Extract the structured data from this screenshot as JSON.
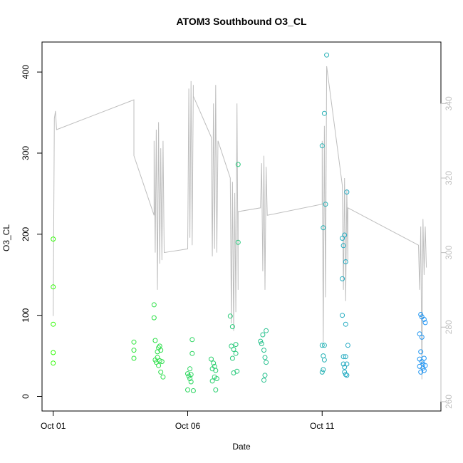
{
  "chart_data": {
    "type": "scatter",
    "title": "ATOM3 Southbound O3_CL",
    "xlabel": "Date",
    "ylabel": "O3_CL",
    "xlim": [
      "2016-09-30T14:00",
      "2016-10-15T10:00"
    ],
    "ylim": [
      -18,
      437
    ],
    "y2lim": [
      257.5,
      356.5
    ],
    "x_ticks": [
      {
        "label": "Oct 01",
        "value": "2016-10-01T00:00"
      },
      {
        "label": "Oct 06",
        "value": "2016-10-06T00:00"
      },
      {
        "label": "Oct 11",
        "value": "2016-10-11T00:00"
      }
    ],
    "y_ticks": [
      0,
      100,
      200,
      300,
      400
    ],
    "y2_ticks": [
      260,
      280,
      300,
      320,
      340
    ],
    "grid": false,
    "legend": "none",
    "colors": {
      "line": "#bebebe",
      "axis": "#000000",
      "right_axis": "#bebebe",
      "point_start": "#33ff00",
      "point_end": "#1e90ff"
    },
    "points": [
      {
        "x": "2016-10-01T00:00",
        "y": 194
      },
      {
        "x": "2016-10-01T00:00",
        "y": 135
      },
      {
        "x": "2016-10-01T00:00",
        "y": 89
      },
      {
        "x": "2016-10-01T00:00",
        "y": 54
      },
      {
        "x": "2016-10-01T00:00",
        "y": 41
      },
      {
        "x": "2016-10-04T00:00",
        "y": 67
      },
      {
        "x": "2016-10-04T00:00",
        "y": 57
      },
      {
        "x": "2016-10-04T00:00",
        "y": 47
      },
      {
        "x": "2016-10-04T18:00",
        "y": 113
      },
      {
        "x": "2016-10-04T18:00",
        "y": 97
      },
      {
        "x": "2016-10-04T19:00",
        "y": 69
      },
      {
        "x": "2016-10-04T19:00",
        "y": 45
      },
      {
        "x": "2016-10-04T20:00",
        "y": 42
      },
      {
        "x": "2016-10-04T21:00",
        "y": 55
      },
      {
        "x": "2016-10-04T21:00",
        "y": 48
      },
      {
        "x": "2016-10-04T22:00",
        "y": 60
      },
      {
        "x": "2016-10-04T22:00",
        "y": 38
      },
      {
        "x": "2016-10-04T23:00",
        "y": 62
      },
      {
        "x": "2016-10-04T23:00",
        "y": 44
      },
      {
        "x": "2016-10-05T00:00",
        "y": 57
      },
      {
        "x": "2016-10-05T00:00",
        "y": 30
      },
      {
        "x": "2016-10-05T01:00",
        "y": 43
      },
      {
        "x": "2016-10-05T02:00",
        "y": 24
      },
      {
        "x": "2016-10-06T00:00",
        "y": 28
      },
      {
        "x": "2016-10-06T00:00",
        "y": 8
      },
      {
        "x": "2016-10-06T01:00",
        "y": 25
      },
      {
        "x": "2016-10-06T02:00",
        "y": 34
      },
      {
        "x": "2016-10-06T02:00",
        "y": 22
      },
      {
        "x": "2016-10-06T03:00",
        "y": 18
      },
      {
        "x": "2016-10-06T03:00",
        "y": 27
      },
      {
        "x": "2016-10-06T04:00",
        "y": 70
      },
      {
        "x": "2016-10-06T04:00",
        "y": 53
      },
      {
        "x": "2016-10-06T05:00",
        "y": 7
      },
      {
        "x": "2016-10-06T21:00",
        "y": 46
      },
      {
        "x": "2016-10-06T22:00",
        "y": 34
      },
      {
        "x": "2016-10-06T22:00",
        "y": 19
      },
      {
        "x": "2016-10-06T23:00",
        "y": 41
      },
      {
        "x": "2016-10-07T00:00",
        "y": 37
      },
      {
        "x": "2016-10-07T00:00",
        "y": 24
      },
      {
        "x": "2016-10-07T01:00",
        "y": 32
      },
      {
        "x": "2016-10-07T01:00",
        "y": 8
      },
      {
        "x": "2016-10-07T02:00",
        "y": 22
      },
      {
        "x": "2016-10-07T14:00",
        "y": 99
      },
      {
        "x": "2016-10-07T16:00",
        "y": 86
      },
      {
        "x": "2016-10-07T15:00",
        "y": 62
      },
      {
        "x": "2016-10-07T17:00",
        "y": 58
      },
      {
        "x": "2016-10-07T19:00",
        "y": 64
      },
      {
        "x": "2016-10-07T19:00",
        "y": 53
      },
      {
        "x": "2016-10-07T16:00",
        "y": 47
      },
      {
        "x": "2016-10-07T17:00",
        "y": 29
      },
      {
        "x": "2016-10-07T20:00",
        "y": 31
      },
      {
        "x": "2016-10-07T21:00",
        "y": 190
      },
      {
        "x": "2016-10-07T21:00",
        "y": 286
      },
      {
        "x": "2016-10-08T17:00",
        "y": 68
      },
      {
        "x": "2016-10-08T18:00",
        "y": 65
      },
      {
        "x": "2016-10-08T19:00",
        "y": 76
      },
      {
        "x": "2016-10-08T20:00",
        "y": 57
      },
      {
        "x": "2016-10-08T21:00",
        "y": 48
      },
      {
        "x": "2016-10-08T22:00",
        "y": 81
      },
      {
        "x": "2016-10-08T22:00",
        "y": 42
      },
      {
        "x": "2016-10-08T21:00",
        "y": 26
      },
      {
        "x": "2016-10-08T20:00",
        "y": 20
      },
      {
        "x": "2016-10-11T00:00",
        "y": 309
      },
      {
        "x": "2016-10-11T01:00",
        "y": 208
      },
      {
        "x": "2016-10-11T02:00",
        "y": 349
      },
      {
        "x": "2016-10-11T03:00",
        "y": 237
      },
      {
        "x": "2016-10-11T04:00",
        "y": 421
      },
      {
        "x": "2016-10-11T00:00",
        "y": 63
      },
      {
        "x": "2016-10-11T02:00",
        "y": 63
      },
      {
        "x": "2016-10-11T01:00",
        "y": 50
      },
      {
        "x": "2016-10-11T02:00",
        "y": 45
      },
      {
        "x": "2016-10-11T01:00",
        "y": 33
      },
      {
        "x": "2016-10-11T00:00",
        "y": 30
      },
      {
        "x": "2016-10-11T18:00",
        "y": 195
      },
      {
        "x": "2016-10-11T20:00",
        "y": 199
      },
      {
        "x": "2016-10-11T19:00",
        "y": 186
      },
      {
        "x": "2016-10-11T21:00",
        "y": 166
      },
      {
        "x": "2016-10-11T18:00",
        "y": 145
      },
      {
        "x": "2016-10-11T18:00",
        "y": 100
      },
      {
        "x": "2016-10-11T22:00",
        "y": 252
      },
      {
        "x": "2016-10-11T21:00",
        "y": 89
      },
      {
        "x": "2016-10-11T23:00",
        "y": 63
      },
      {
        "x": "2016-10-11T19:00",
        "y": 49
      },
      {
        "x": "2016-10-11T21:00",
        "y": 49
      },
      {
        "x": "2016-10-11T19:00",
        "y": 40
      },
      {
        "x": "2016-10-11T20:00",
        "y": 36
      },
      {
        "x": "2016-10-11T22:00",
        "y": 40
      },
      {
        "x": "2016-10-11T20:00",
        "y": 30
      },
      {
        "x": "2016-10-11T22:00",
        "y": 26
      },
      {
        "x": "2016-10-11T21:00",
        "y": 27
      },
      {
        "x": "2016-10-14T16:00",
        "y": 101
      },
      {
        "x": "2016-10-14T17:00",
        "y": 98
      },
      {
        "x": "2016-10-14T19:00",
        "y": 95
      },
      {
        "x": "2016-10-14T20:00",
        "y": 91
      },
      {
        "x": "2016-10-14T15:00",
        "y": 77
      },
      {
        "x": "2016-10-14T17:00",
        "y": 73
      },
      {
        "x": "2016-10-14T16:00",
        "y": 55
      },
      {
        "x": "2016-10-14T15:00",
        "y": 46
      },
      {
        "x": "2016-10-14T19:00",
        "y": 47
      },
      {
        "x": "2016-10-14T17:00",
        "y": 43
      },
      {
        "x": "2016-10-14T15:00",
        "y": 37
      },
      {
        "x": "2016-10-14T18:00",
        "y": 40
      },
      {
        "x": "2016-10-14T20:00",
        "y": 38
      },
      {
        "x": "2016-10-14T16:00",
        "y": 30
      },
      {
        "x": "2016-10-14T19:00",
        "y": 32
      },
      {
        "x": "2016-10-14T18:00",
        "y": 35
      }
    ],
    "line_series": [
      {
        "x": "2016-10-01T00:00",
        "y2": 283
      },
      {
        "x": "2016-10-01T01:00",
        "y2": 336
      },
      {
        "x": "2016-10-01T02:00",
        "y2": 338
      },
      {
        "x": "2016-10-01T03:00",
        "y2": 333
      },
      {
        "x": "2016-10-04T00:00",
        "y2": 341
      },
      {
        "x": "2016-10-04T00:00",
        "y2": 326
      },
      {
        "x": "2016-10-04T18:00",
        "y2": 310
      },
      {
        "x": "2016-10-04T18:00",
        "y2": 330
      },
      {
        "x": "2016-10-04T19:00",
        "y2": 300
      },
      {
        "x": "2016-10-04T20:00",
        "y2": 333
      },
      {
        "x": "2016-10-04T21:00",
        "y2": 290
      },
      {
        "x": "2016-10-04T22:00",
        "y2": 335
      },
      {
        "x": "2016-10-04T23:00",
        "y2": 297
      },
      {
        "x": "2016-10-05T00:00",
        "y2": 328
      },
      {
        "x": "2016-10-05T01:00",
        "y2": 298
      },
      {
        "x": "2016-10-05T02:00",
        "y2": 330
      },
      {
        "x": "2016-10-05T03:00",
        "y2": 300
      },
      {
        "x": "2016-10-06T00:00",
        "y2": 301
      },
      {
        "x": "2016-10-06T01:00",
        "y2": 344
      },
      {
        "x": "2016-10-06T02:00",
        "y2": 304
      },
      {
        "x": "2016-10-06T03:00",
        "y2": 346
      },
      {
        "x": "2016-10-06T04:00",
        "y2": 302
      },
      {
        "x": "2016-10-06T05:00",
        "y2": 345
      },
      {
        "x": "2016-10-06T05:00",
        "y2": 342
      },
      {
        "x": "2016-10-06T21:00",
        "y2": 331
      },
      {
        "x": "2016-10-06T22:00",
        "y2": 299
      },
      {
        "x": "2016-10-06T23:00",
        "y2": 340
      },
      {
        "x": "2016-10-07T00:00",
        "y2": 301
      },
      {
        "x": "2016-10-07T01:00",
        "y2": 345
      },
      {
        "x": "2016-10-07T02:00",
        "y2": 300
      },
      {
        "x": "2016-10-07T03:00",
        "y2": 330
      },
      {
        "x": "2016-10-07T14:00",
        "y2": 320
      },
      {
        "x": "2016-10-07T15:00",
        "y2": 281
      },
      {
        "x": "2016-10-07T16:00",
        "y2": 319
      },
      {
        "x": "2016-10-07T17:00",
        "y2": 279
      },
      {
        "x": "2016-10-07T18:00",
        "y2": 316
      },
      {
        "x": "2016-10-07T19:00",
        "y2": 284
      },
      {
        "x": "2016-10-07T20:00",
        "y2": 340
      },
      {
        "x": "2016-10-07T21:00",
        "y2": 290
      },
      {
        "x": "2016-10-07T21:00",
        "y2": 311
      },
      {
        "x": "2016-10-08T17:00",
        "y2": 312
      },
      {
        "x": "2016-10-08T18:00",
        "y2": 324
      },
      {
        "x": "2016-10-08T19:00",
        "y2": 295
      },
      {
        "x": "2016-10-08T20:00",
        "y2": 326
      },
      {
        "x": "2016-10-08T21:00",
        "y2": 290
      },
      {
        "x": "2016-10-08T22:00",
        "y2": 323
      },
      {
        "x": "2016-10-08T23:00",
        "y2": 310
      },
      {
        "x": "2016-10-11T00:00",
        "y2": 313
      },
      {
        "x": "2016-10-11T00:00",
        "y2": 330
      },
      {
        "x": "2016-10-11T01:00",
        "y2": 276
      },
      {
        "x": "2016-10-11T02:00",
        "y2": 334
      },
      {
        "x": "2016-10-11T03:00",
        "y2": 288
      },
      {
        "x": "2016-10-11T04:00",
        "y2": 350
      },
      {
        "x": "2016-10-11T18:00",
        "y2": 318
      },
      {
        "x": "2016-10-11T19:00",
        "y2": 290
      },
      {
        "x": "2016-10-11T20:00",
        "y2": 320
      },
      {
        "x": "2016-10-11T21:00",
        "y2": 287
      },
      {
        "x": "2016-10-11T22:00",
        "y2": 317
      },
      {
        "x": "2016-10-11T23:00",
        "y2": 298
      },
      {
        "x": "2016-10-11T23:00",
        "y2": 312
      },
      {
        "x": "2016-10-14T14:00",
        "y2": 302
      },
      {
        "x": "2016-10-14T15:00",
        "y2": 290
      },
      {
        "x": "2016-10-14T16:00",
        "y2": 307
      },
      {
        "x": "2016-10-14T17:00",
        "y2": 266
      },
      {
        "x": "2016-10-14T18:00",
        "y2": 309
      },
      {
        "x": "2016-10-14T19:00",
        "y2": 294
      },
      {
        "x": "2016-10-14T20:00",
        "y2": 307
      },
      {
        "x": "2016-10-14T21:00",
        "y2": 296
      }
    ]
  }
}
